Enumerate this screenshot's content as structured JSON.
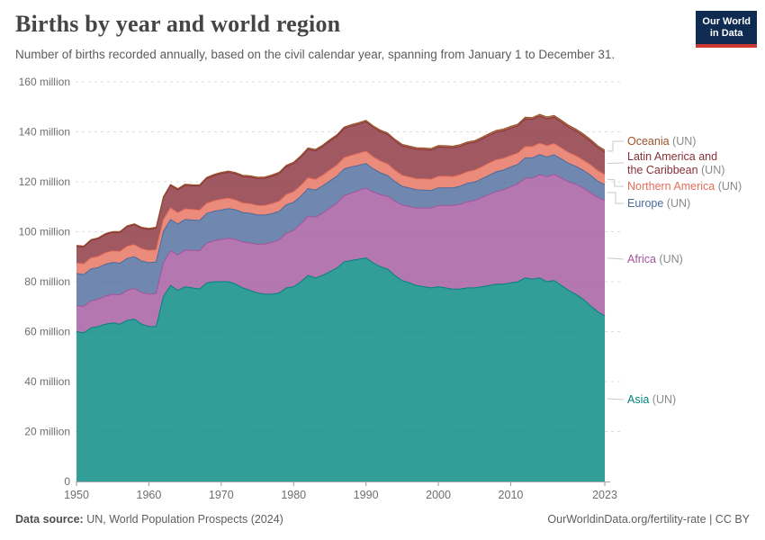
{
  "header": {
    "title": "Births by year and world region",
    "subtitle": "Number of births recorded annually, based on the civil calendar year, spanning from January 1 to December 31.",
    "logo_line1": "Our World",
    "logo_line2": "in Data",
    "logo_bg": "#102B52",
    "logo_stripe": "#CF3732"
  },
  "footer": {
    "source_label": "Data source:",
    "source_text": " UN, World Population Prospects (2024)",
    "right_text": "OurWorldinData.org/fertility-rate | CC BY"
  },
  "chart_data": {
    "type": "area",
    "stacked": true,
    "title": "Births by year and world region",
    "xlabel": "",
    "ylabel": "",
    "unit": "million",
    "ylim": [
      0,
      160
    ],
    "grid": true,
    "legend_position": "right",
    "yticks": [
      0,
      20,
      40,
      60,
      80,
      100,
      120,
      140,
      160
    ],
    "ytick_labels": [
      "0",
      "20 million",
      "40 million",
      "60 million",
      "80 million",
      "100 million",
      "120 million",
      "140 million",
      "160 million"
    ],
    "xticks": [
      1950,
      1960,
      1970,
      1980,
      1990,
      2000,
      2010,
      2023
    ],
    "years": [
      1950,
      1951,
      1952,
      1953,
      1954,
      1955,
      1956,
      1957,
      1958,
      1959,
      1960,
      1961,
      1962,
      1963,
      1964,
      1965,
      1966,
      1967,
      1968,
      1969,
      1970,
      1971,
      1972,
      1973,
      1974,
      1975,
      1976,
      1977,
      1978,
      1979,
      1980,
      1981,
      1982,
      1983,
      1984,
      1985,
      1986,
      1987,
      1988,
      1989,
      1990,
      1991,
      1992,
      1993,
      1994,
      1995,
      1996,
      1997,
      1998,
      1999,
      2000,
      2001,
      2002,
      2003,
      2004,
      2005,
      2006,
      2007,
      2008,
      2009,
      2010,
      2011,
      2012,
      2013,
      2014,
      2015,
      2016,
      2017,
      2018,
      2019,
      2020,
      2021,
      2022,
      2023
    ],
    "series": [
      {
        "key": "asia",
        "name": "Asia",
        "suffix": "(UN)",
        "color": "#00847E",
        "values": [
          60,
          59.5,
          61.5,
          62,
          63,
          63.5,
          63,
          64.5,
          65,
          63,
          62,
          62,
          74,
          78.5,
          76.5,
          78,
          77.5,
          77,
          79.5,
          80,
          80,
          80,
          79,
          77.5,
          76.5,
          75.5,
          75,
          75,
          75.5,
          77.5,
          78,
          80,
          82.5,
          81.5,
          82.5,
          84,
          85.5,
          88,
          88.5,
          89,
          89.5,
          87.5,
          86,
          85,
          82.5,
          80.5,
          79.5,
          78.5,
          78,
          77.5,
          78,
          77.5,
          77,
          77,
          77.5,
          77.5,
          78,
          78.5,
          79,
          79,
          79.5,
          80,
          81.5,
          81,
          81.5,
          80,
          80.5,
          78.5,
          76.5,
          75,
          73,
          70.5,
          68,
          66.3
        ]
      },
      {
        "key": "africa",
        "name": "Africa",
        "suffix": "(UN)",
        "color": "#A2559C",
        "values": [
          10.4,
          10.6,
          10.8,
          11,
          11.2,
          11.5,
          11.7,
          12,
          12.3,
          12.6,
          13,
          13.3,
          13.6,
          13.9,
          14.2,
          14.6,
          15,
          15.4,
          15.9,
          16.4,
          16.9,
          17.4,
          17.9,
          18.4,
          19,
          19.5,
          20.1,
          20.7,
          21.3,
          21.9,
          22.5,
          23.1,
          23.7,
          24.3,
          24.9,
          25.5,
          26,
          26.5,
          27,
          27.5,
          28,
          28.4,
          28.8,
          29.2,
          29.7,
          30.2,
          30.6,
          31,
          31.5,
          32,
          32.5,
          33,
          33.5,
          34,
          34.5,
          35,
          35.7,
          36.4,
          37.1,
          37.8,
          38.5,
          39.2,
          39.9,
          40.6,
          41.3,
          42,
          42.5,
          43,
          43.5,
          44,
          44.6,
          45.2,
          45.8,
          46.3
        ]
      },
      {
        "key": "europe",
        "name": "Europe",
        "suffix": "(UN)",
        "color": "#4C6A9C",
        "values": [
          12.9,
          12.7,
          12.8,
          12.7,
          12.8,
          12.7,
          12.7,
          12.8,
          12.7,
          12.7,
          12.6,
          12.6,
          12.5,
          12.5,
          12.4,
          12.3,
          12.2,
          12.1,
          11.9,
          11.8,
          11.8,
          11.9,
          11.9,
          11.8,
          11.9,
          11.7,
          11.6,
          11.5,
          11.4,
          11.4,
          11.3,
          11.1,
          11.1,
          10.9,
          10.9,
          10.8,
          10.8,
          10.7,
          10.5,
          10.1,
          9.8,
          9.3,
          8.8,
          8.3,
          7.9,
          7.5,
          7.4,
          7.3,
          7.2,
          7,
          7.1,
          7.1,
          7.1,
          7.2,
          7.4,
          7.4,
          7.5,
          7.7,
          7.9,
          7.9,
          7.9,
          7.8,
          8.2,
          8,
          8.1,
          7.9,
          7.8,
          7.6,
          7.4,
          7.2,
          7,
          7,
          6.5,
          6.2
        ]
      },
      {
        "key": "northern_america",
        "name": "Northern America",
        "suffix": "(UN)",
        "color": "#E56E5A",
        "values": [
          4.2,
          4.3,
          4.4,
          4.4,
          4.6,
          4.6,
          4.7,
          4.9,
          4.8,
          4.9,
          4.9,
          4.9,
          4.7,
          4.6,
          4.5,
          4.3,
          4.2,
          4.1,
          4.1,
          4.2,
          4.3,
          4.1,
          3.9,
          3.8,
          3.8,
          3.8,
          3.8,
          4,
          4,
          4.1,
          4.2,
          4.3,
          4.3,
          4.2,
          4.3,
          4.4,
          4.4,
          4.5,
          4.6,
          4.8,
          4.9,
          4.8,
          4.7,
          4.6,
          4.5,
          4.4,
          4.4,
          4.4,
          4.5,
          4.5,
          4.6,
          4.6,
          4.5,
          4.6,
          4.6,
          4.7,
          4.8,
          4.9,
          4.8,
          4.7,
          4.6,
          4.5,
          4.5,
          4.5,
          4.5,
          4.5,
          4.5,
          4.4,
          4.3,
          4.2,
          4.1,
          4.2,
          4.2,
          4.1
        ]
      },
      {
        "key": "latin_america",
        "name": "Latin America and the Caribbean",
        "name_line1": "Latin America and",
        "name_line2": "the Caribbean",
        "suffix": "(UN)",
        "color": "#883039",
        "values": [
          6.7,
          6.8,
          7,
          7.1,
          7.3,
          7.4,
          7.6,
          7.8,
          8,
          8.2,
          8.4,
          8.6,
          8.8,
          9,
          9.2,
          9.4,
          9.5,
          9.7,
          9.9,
          10.1,
          10.3,
          10.4,
          10.5,
          10.6,
          10.7,
          10.8,
          10.9,
          11,
          11.1,
          11.2,
          11.3,
          11.4,
          11.4,
          11.5,
          11.5,
          11.6,
          11.6,
          11.7,
          11.7,
          11.7,
          11.8,
          11.8,
          11.8,
          11.8,
          11.8,
          11.8,
          11.8,
          11.8,
          11.7,
          11.7,
          11.7,
          11.6,
          11.5,
          11.4,
          11.3,
          11.2,
          11.1,
          11.1,
          11.1,
          11,
          11,
          10.9,
          11,
          10.9,
          10.9,
          10.8,
          10.5,
          10.4,
          10.2,
          10,
          9.8,
          9.4,
          9.2,
          9
        ]
      },
      {
        "key": "oceania",
        "name": "Oceania",
        "suffix": "(UN)",
        "color": "#9A5129",
        "values": [
          0.35,
          0.36,
          0.36,
          0.37,
          0.38,
          0.38,
          0.39,
          0.4,
          0.4,
          0.41,
          0.42,
          0.43,
          0.43,
          0.44,
          0.45,
          0.46,
          0.46,
          0.47,
          0.48,
          0.49,
          0.5,
          0.51,
          0.51,
          0.52,
          0.53,
          0.53,
          0.54,
          0.54,
          0.55,
          0.55,
          0.56,
          0.56,
          0.57,
          0.57,
          0.58,
          0.59,
          0.59,
          0.6,
          0.61,
          0.61,
          0.62,
          0.62,
          0.63,
          0.63,
          0.64,
          0.64,
          0.65,
          0.65,
          0.65,
          0.65,
          0.66,
          0.66,
          0.67,
          0.67,
          0.68,
          0.68,
          0.69,
          0.7,
          0.71,
          0.71,
          0.72,
          0.72,
          0.73,
          0.73,
          0.74,
          0.74,
          0.75,
          0.75,
          0.76,
          0.76,
          0.77,
          0.77,
          0.78,
          0.78
        ]
      }
    ],
    "legend_order": [
      "oceania",
      "latin_america",
      "northern_america",
      "europe",
      "africa",
      "asia"
    ],
    "colors": {
      "grid": "#dcdcdc",
      "axis": "#a8a8a8",
      "tick_text": "#6e6e6e",
      "legend_suffix": "#8a8a8a",
      "pointer_line": "#c8c8c8"
    }
  }
}
